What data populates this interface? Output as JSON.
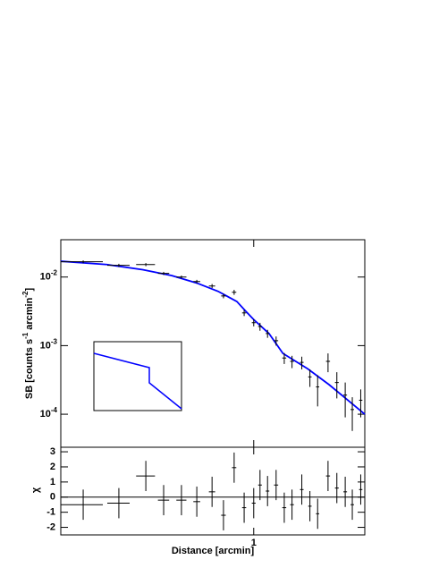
{
  "chart_data": [
    {
      "type": "errorbar",
      "y_label": {
        "parts": [
          "SB [counts s",
          "-1",
          " arcmin",
          "-2",
          "]"
        ]
      },
      "xscale": "log",
      "yscale": "log",
      "xlim": [
        0.3,
        2.0
      ],
      "ylim": [
        3.3e-05,
        0.035
      ],
      "yticks": [
        {
          "value": 0.01,
          "label": "10",
          "exponent": "-2"
        },
        {
          "value": 0.001,
          "label": "10",
          "exponent": "-3"
        },
        {
          "value": 0.0001,
          "label": "10",
          "exponent": "-4"
        }
      ],
      "series": [
        {
          "color": "#000000",
          "x": [
            0.345,
            0.431,
            0.51,
            0.57,
            0.637,
            0.701,
            0.771,
            0.828,
            0.885,
            0.942,
            1.0,
            1.04,
            1.09,
            1.15,
            1.21,
            1.27,
            1.35,
            1.42,
            1.49,
            1.59,
            1.68,
            1.77,
            1.85,
            1.95
          ],
          "values": [
            0.0167,
            0.0148,
            0.0152,
            0.0113,
            0.01,
            0.0086,
            0.0074,
            0.0053,
            0.006,
            0.003,
            0.00216,
            0.0019,
            0.0015,
            0.00118,
            0.00066,
            0.00059,
            0.00057,
            0.00035,
            0.00025,
            0.00059,
            0.00029,
            0.00019,
            0.000117,
            0.00016
          ],
          "xerr": [
            0.045,
            0.03,
            0.03,
            0.02,
            0.02,
            0.015,
            0.015,
            0.012,
            0.012,
            0.012,
            0.012,
            0.012,
            0.012,
            0.015,
            0.015,
            0.015,
            0.015,
            0.015,
            0.015,
            0.02,
            0.02,
            0.02,
            0.02,
            0.02
          ],
          "yerr": [
            0.0008,
            0.0008,
            0.0008,
            0.0006,
            0.0005,
            0.0005,
            0.0005,
            0.0004,
            0.0005,
            0.0003,
            0.00025,
            0.00025,
            0.0002,
            0.00018,
            0.00012,
            0.00012,
            0.00012,
            0.0001,
            0.00012,
            0.00018,
            0.00012,
            0.0001,
            6e-05,
            7e-05
          ]
        }
      ],
      "model": {
        "color": "#0000ff",
        "x": [
          0.3,
          0.4,
          0.5,
          0.6,
          0.7,
          0.8,
          0.9,
          0.95,
          1.0,
          1.1,
          1.2,
          1.4,
          1.6,
          1.8,
          2.0
        ],
        "values": [
          0.017,
          0.0152,
          0.0128,
          0.0105,
          0.0082,
          0.0062,
          0.0044,
          0.0032,
          0.0024,
          0.0015,
          0.00077,
          0.00046,
          0.00027,
          0.00016,
          0.0001
        ]
      }
    },
    {
      "type": "errorbar",
      "x_label": "Distance [arcmin]",
      "y_label": "χ",
      "xscale": "log",
      "xlim": [
        0.3,
        2.0
      ],
      "ylim": [
        -2.5,
        3.3
      ],
      "xticks": [
        1
      ],
      "yticks": [
        -2,
        -1,
        0,
        1,
        2,
        3
      ],
      "reference_line": 0,
      "series": [
        {
          "color": "#000000",
          "x": [
            0.345,
            0.431,
            0.51,
            0.57,
            0.637,
            0.701,
            0.771,
            0.828,
            0.885,
            0.942,
            1.0,
            1.04,
            1.09,
            1.15,
            1.21,
            1.27,
            1.35,
            1.42,
            1.49,
            1.59,
            1.68,
            1.77,
            1.85,
            1.95
          ],
          "values": [
            -0.5,
            -0.4,
            1.4,
            -0.2,
            -0.2,
            -0.3,
            0.35,
            -1.2,
            1.95,
            -0.7,
            -0.4,
            0.8,
            0.4,
            0.8,
            -0.7,
            -0.5,
            0.5,
            -0.6,
            -1.1,
            1.4,
            0.6,
            0.35,
            -0.5,
            0.5
          ],
          "xerr": [
            0.045,
            0.03,
            0.03,
            0.02,
            0.02,
            0.015,
            0.015,
            0.012,
            0.012,
            0.012,
            0.012,
            0.012,
            0.012,
            0.015,
            0.015,
            0.015,
            0.015,
            0.015,
            0.015,
            0.02,
            0.02,
            0.02,
            0.02,
            0.02
          ],
          "yerr": [
            1,
            1,
            1,
            1,
            1,
            1,
            1,
            1,
            1,
            1,
            1,
            1,
            1,
            1,
            1,
            1,
            1,
            1,
            1,
            1,
            1,
            1,
            1,
            1
          ]
        }
      ]
    }
  ]
}
